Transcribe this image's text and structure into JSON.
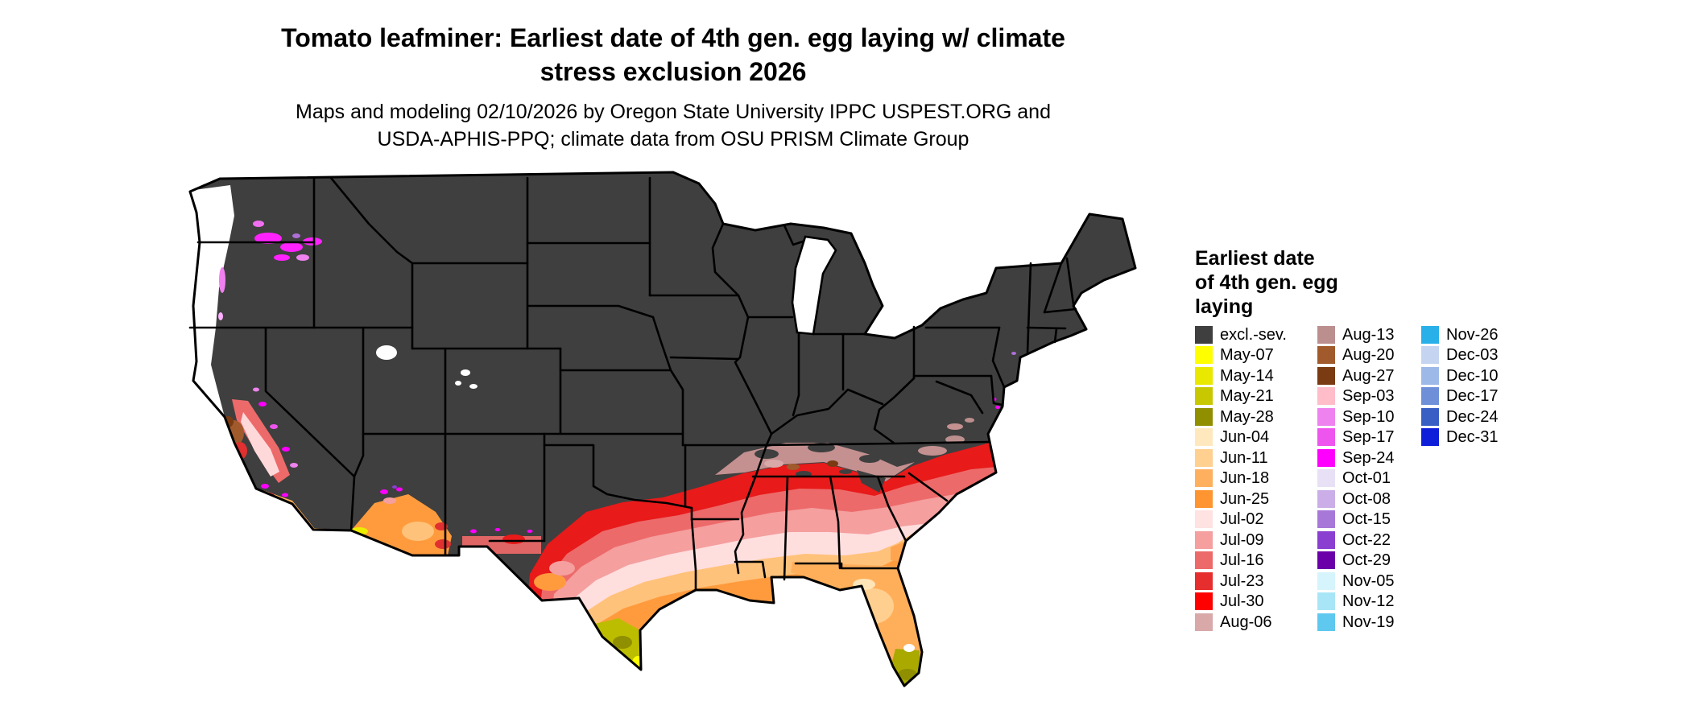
{
  "title": {
    "line1": "Tomato leafminer: Earliest date of 4th gen. egg laying w/ climate",
    "line2": "stress exclusion 2026"
  },
  "subtitle": {
    "line1": "Maps and modeling 02/10/2026 by Oregon State University IPPC USPEST.ORG and",
    "line2": "USDA-APHIS-PPQ; climate data from OSU PRISM Climate Group"
  },
  "legend": {
    "title_lines": [
      "Earliest date",
      "of 4th gen. egg",
      "laying"
    ],
    "columns": [
      [
        {
          "label": "excl.-sev.",
          "color": "#3f3f3f"
        },
        {
          "label": "May-07",
          "color": "#ffff00"
        },
        {
          "label": "May-14",
          "color": "#e8e800"
        },
        {
          "label": "May-21",
          "color": "#c8c800"
        },
        {
          "label": "May-28",
          "color": "#8f8f00"
        },
        {
          "label": "Jun-04",
          "color": "#ffe8bd"
        },
        {
          "label": "Jun-11",
          "color": "#ffd08f"
        },
        {
          "label": "Jun-18",
          "color": "#ffb05f"
        },
        {
          "label": "Jun-25",
          "color": "#ff9530"
        },
        {
          "label": "Jul-02",
          "color": "#ffe2e2"
        },
        {
          "label": "Jul-09",
          "color": "#f59f9f"
        },
        {
          "label": "Jul-16",
          "color": "#ed6a6a"
        },
        {
          "label": "Jul-23",
          "color": "#e62e2e"
        },
        {
          "label": "Jul-30",
          "color": "#ff0000"
        },
        {
          "label": "Aug-06",
          "color": "#d9a8a8"
        }
      ],
      [
        {
          "label": "Aug-13",
          "color": "#bc8f8f"
        },
        {
          "label": "Aug-20",
          "color": "#a05a2c"
        },
        {
          "label": "Aug-27",
          "color": "#7a3b12"
        },
        {
          "label": "Sep-03",
          "color": "#ffbcc9"
        },
        {
          "label": "Sep-10",
          "color": "#ee82ee"
        },
        {
          "label": "Sep-17",
          "color": "#ee55ee"
        },
        {
          "label": "Sep-24",
          "color": "#ff00ff"
        },
        {
          "label": "Oct-01",
          "color": "#e8e0f5"
        },
        {
          "label": "Oct-08",
          "color": "#cbaee8"
        },
        {
          "label": "Oct-15",
          "color": "#a878d8"
        },
        {
          "label": "Oct-22",
          "color": "#8a3fd1"
        },
        {
          "label": "Oct-29",
          "color": "#6a00a8"
        },
        {
          "label": "Nov-05",
          "color": "#d6f4fb"
        },
        {
          "label": "Nov-12",
          "color": "#a8e6f7"
        },
        {
          "label": "Nov-19",
          "color": "#5fc8ef"
        }
      ],
      [
        {
          "label": "Nov-26",
          "color": "#29b0e8"
        },
        {
          "label": "Dec-03",
          "color": "#c5d4f0"
        },
        {
          "label": "Dec-10",
          "color": "#9db9e8"
        },
        {
          "label": "Dec-17",
          "color": "#6f8fd9"
        },
        {
          "label": "Dec-24",
          "color": "#3a5fc4"
        },
        {
          "label": "Dec-31",
          "color": "#0f1fd9"
        }
      ]
    ]
  },
  "map": {
    "excluded_color": "#3f3f3f",
    "state_border_color": "#000000",
    "water_color": "#ffffff"
  }
}
